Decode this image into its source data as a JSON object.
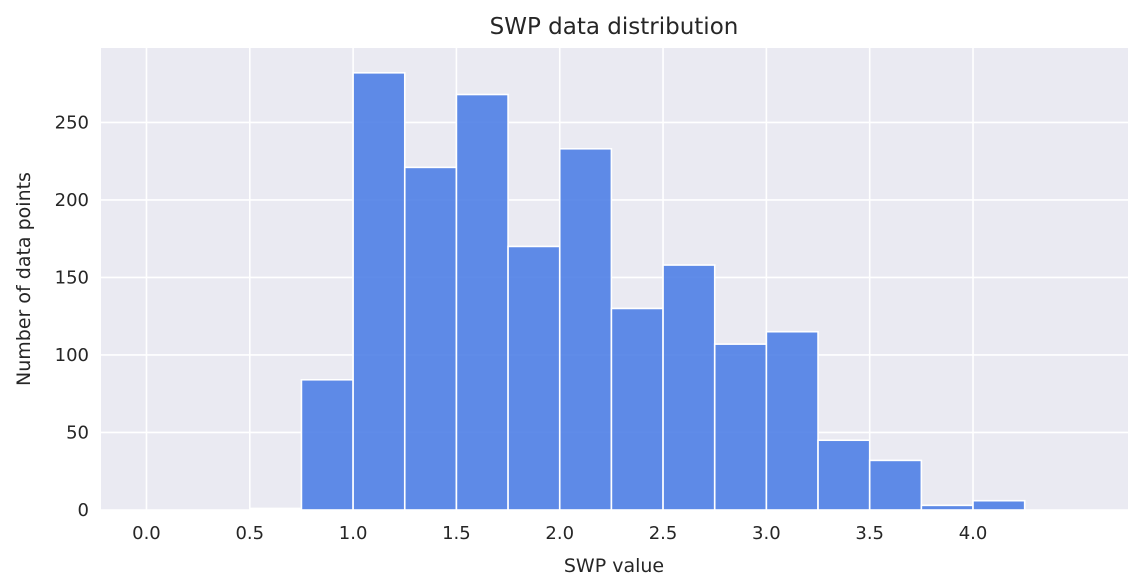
{
  "chart_data": {
    "type": "bar",
    "title": "SWP data distribution",
    "xlabel": "SWP value",
    "ylabel": "Number of data points",
    "bin_width": 0.25,
    "bins": [
      {
        "start": 0.5,
        "count": 1
      },
      {
        "start": 0.75,
        "count": 84
      },
      {
        "start": 1.0,
        "count": 282
      },
      {
        "start": 1.25,
        "count": 221
      },
      {
        "start": 1.5,
        "count": 268
      },
      {
        "start": 1.75,
        "count": 170
      },
      {
        "start": 2.0,
        "count": 233
      },
      {
        "start": 2.25,
        "count": 130
      },
      {
        "start": 2.5,
        "count": 158
      },
      {
        "start": 2.75,
        "count": 107
      },
      {
        "start": 3.0,
        "count": 115
      },
      {
        "start": 3.25,
        "count": 45
      },
      {
        "start": 3.5,
        "count": 32
      },
      {
        "start": 3.75,
        "count": 3
      },
      {
        "start": 4.0,
        "count": 6
      }
    ],
    "xlim": [
      -0.22,
      4.75
    ],
    "ylim": [
      0,
      298
    ],
    "xticks": [
      0.0,
      0.5,
      1.0,
      1.5,
      2.0,
      2.5,
      3.0,
      3.5,
      4.0
    ],
    "xtick_labels": [
      "0.0",
      "0.5",
      "1.0",
      "1.5",
      "2.0",
      "2.5",
      "3.0",
      "3.5",
      "4.0"
    ],
    "yticks": [
      0,
      50,
      100,
      150,
      200,
      250
    ],
    "ytick_labels": [
      "0",
      "50",
      "100",
      "150",
      "200",
      "250"
    ],
    "grid": true,
    "bar_color": "#4f7fe6",
    "background_color": "#eaeaf2"
  }
}
